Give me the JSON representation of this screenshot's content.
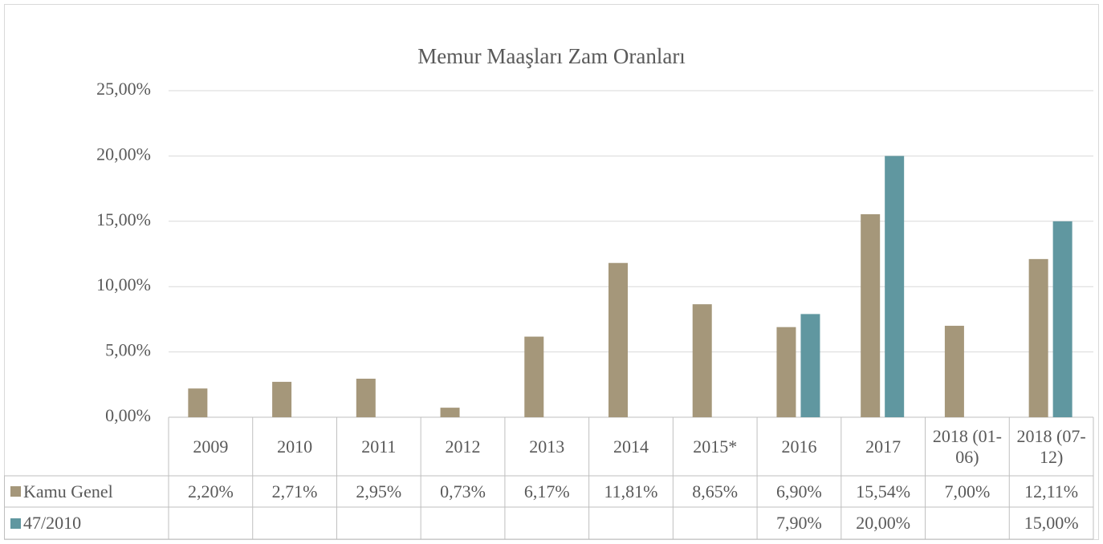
{
  "chart_data": {
    "type": "bar",
    "title": "Memur Maaşları Zam Oranları",
    "categories": [
      "2009",
      "2010",
      "2011",
      "2012",
      "2013",
      "2014",
      "2015*",
      "2016",
      "2017",
      "2018 (01-06)",
      "2018 (07-12)"
    ],
    "series": [
      {
        "name": "Kamu Genel",
        "color": "#a5977a",
        "values": [
          2.2,
          2.71,
          2.95,
          0.73,
          6.17,
          11.81,
          8.65,
          6.9,
          15.54,
          7.0,
          12.11
        ],
        "value_labels": [
          "2,20%",
          "2,71%",
          "2,95%",
          "0,73%",
          "6,17%",
          "11,81%",
          "8,65%",
          "6,90%",
          "15,54%",
          "7,00%",
          "12,11%"
        ]
      },
      {
        "name": "47/2010",
        "color": "#6097a0",
        "values": [
          null,
          null,
          null,
          null,
          null,
          null,
          null,
          7.9,
          20.0,
          null,
          15.0
        ],
        "value_labels": [
          null,
          null,
          null,
          null,
          null,
          null,
          null,
          "7,90%",
          "20,00%",
          null,
          "15,00%"
        ]
      }
    ],
    "ylim": [
      0,
      25
    ],
    "yticks": [
      {
        "value": 0,
        "label": "0,00%"
      },
      {
        "value": 5,
        "label": "5,00%"
      },
      {
        "value": 10,
        "label": "10,00%"
      },
      {
        "value": 15,
        "label": "15,00%"
      },
      {
        "value": 20,
        "label": "20,00%"
      },
      {
        "value": 25,
        "label": "25,00%"
      }
    ],
    "grid": true,
    "data_table": true
  }
}
